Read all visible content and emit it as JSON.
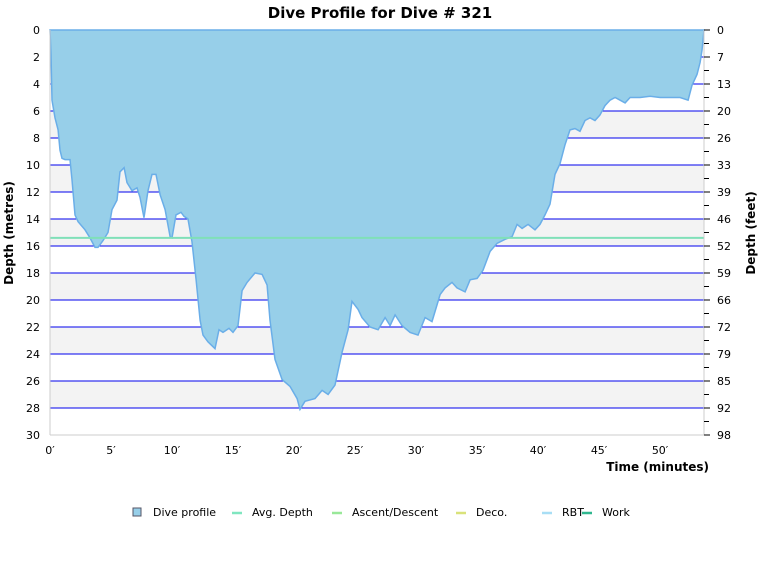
{
  "chart_data": {
    "type": "area",
    "title": "Dive Profile for Dive # 321",
    "xlabel": "Time (minutes)",
    "ylabel": "Depth (metres)",
    "ylabel_right": "Depth (feet)",
    "xlim": [
      0,
      53.6
    ],
    "ylim": [
      0,
      30
    ],
    "y_inverted": true,
    "grid": true,
    "x_ticks": [
      "0′",
      "5′",
      "10′",
      "15′",
      "20′",
      "25′",
      "30′",
      "35′",
      "40′",
      "45′",
      "50′"
    ],
    "y_ticks": [
      "0",
      "2",
      "4",
      "6",
      "8",
      "10",
      "12",
      "14",
      "16",
      "18",
      "20",
      "22",
      "24",
      "26",
      "28",
      "30"
    ],
    "y_right_ticks": [
      "0",
      "7",
      "13",
      "20",
      "26",
      "33",
      "39",
      "46",
      "52",
      "59",
      "66",
      "72",
      "79",
      "85",
      "92",
      "98"
    ],
    "avg_depth": 15.4,
    "colors": {
      "profile_fill": "#97cfe9",
      "profile_line": "#6aaee8",
      "avg_depth": "#7fe0b8",
      "grid": "#0000ee",
      "band": "#f3f3f3"
    },
    "legend_placement": "bottom",
    "legend": [
      {
        "label": "Dive profile",
        "color": "#97cfe9",
        "kind": "box"
      },
      {
        "label": "Avg. Depth",
        "color": "#80e6c0",
        "kind": "line"
      },
      {
        "label": "Ascent/Descent",
        "color": "#99e899",
        "kind": "line"
      },
      {
        "label": "Deco.",
        "color": "#d9e27a",
        "kind": "line"
      },
      {
        "label": "RBT",
        "color": "#a8def5",
        "kind": "line"
      },
      {
        "label": "Work",
        "color": "#2fb78f",
        "kind": "line"
      }
    ],
    "series": [
      {
        "name": "Dive profile",
        "points": [
          [
            0,
            0
          ],
          [
            0.08,
            1.8
          ],
          [
            0.16,
            5.2
          ],
          [
            0.41,
            6.5
          ],
          [
            0.66,
            7.4
          ],
          [
            0.82,
            8.9
          ],
          [
            0.98,
            9.5
          ],
          [
            1.23,
            9.6
          ],
          [
            1.64,
            9.6
          ],
          [
            1.8,
            11.1
          ],
          [
            2.05,
            13.7
          ],
          [
            2.3,
            14.2
          ],
          [
            2.87,
            14.8
          ],
          [
            3.28,
            15.4
          ],
          [
            3.69,
            16.1
          ],
          [
            3.93,
            16.1
          ],
          [
            4.34,
            15.6
          ],
          [
            4.75,
            15
          ],
          [
            5.08,
            13.3
          ],
          [
            5.49,
            12.6
          ],
          [
            5.74,
            10.5
          ],
          [
            6.07,
            10.2
          ],
          [
            6.31,
            11.3
          ],
          [
            6.72,
            11.9
          ],
          [
            7.13,
            11.7
          ],
          [
            7.38,
            12.4
          ],
          [
            7.7,
            13.9
          ],
          [
            8.03,
            11.9
          ],
          [
            8.36,
            10.7
          ],
          [
            8.69,
            10.7
          ],
          [
            9.02,
            12.2
          ],
          [
            9.43,
            13.3
          ],
          [
            9.84,
            15.3
          ],
          [
            10,
            15.4
          ],
          [
            10.33,
            13.7
          ],
          [
            10.74,
            13.5
          ],
          [
            10.98,
            13.8
          ],
          [
            11.31,
            14
          ],
          [
            11.64,
            15.7
          ],
          [
            11.97,
            18.5
          ],
          [
            12.3,
            21.5
          ],
          [
            12.54,
            22.6
          ],
          [
            12.95,
            23.1
          ],
          [
            13.52,
            23.6
          ],
          [
            13.85,
            22.2
          ],
          [
            14.18,
            22.4
          ],
          [
            14.67,
            22.1
          ],
          [
            15,
            22.4
          ],
          [
            15.41,
            21.9
          ],
          [
            15.74,
            19.3
          ],
          [
            16.15,
            18.7
          ],
          [
            16.8,
            18
          ],
          [
            17.38,
            18.1
          ],
          [
            17.79,
            18.9
          ],
          [
            18.03,
            21.5
          ],
          [
            18.44,
            24.4
          ],
          [
            19.02,
            25.9
          ],
          [
            19.67,
            26.4
          ],
          [
            20.25,
            27.3
          ],
          [
            20.49,
            28.1
          ],
          [
            20.9,
            27.5
          ],
          [
            21.72,
            27.3
          ],
          [
            22.3,
            26.7
          ],
          [
            22.79,
            27
          ],
          [
            23.36,
            26.3
          ],
          [
            23.93,
            23.9
          ],
          [
            24.43,
            22.2
          ],
          [
            24.75,
            20.1
          ],
          [
            25.25,
            20.7
          ],
          [
            25.57,
            21.3
          ],
          [
            26.23,
            22
          ],
          [
            26.89,
            22.2
          ],
          [
            27.46,
            21.3
          ],
          [
            27.87,
            21.9
          ],
          [
            28.28,
            21.1
          ],
          [
            28.85,
            21.9
          ],
          [
            29.51,
            22.4
          ],
          [
            30.16,
            22.6
          ],
          [
            30.74,
            21.3
          ],
          [
            31.31,
            21.6
          ],
          [
            31.97,
            19.6
          ],
          [
            32.38,
            19.1
          ],
          [
            32.95,
            18.7
          ],
          [
            33.36,
            19.1
          ],
          [
            34.02,
            19.4
          ],
          [
            34.43,
            18.5
          ],
          [
            35,
            18.4
          ],
          [
            35.49,
            17.8
          ],
          [
            36.07,
            16.4
          ],
          [
            36.64,
            15.8
          ],
          [
            37.3,
            15.5
          ],
          [
            37.87,
            15.3
          ],
          [
            38.28,
            14.4
          ],
          [
            38.69,
            14.7
          ],
          [
            39.18,
            14.4
          ],
          [
            39.75,
            14.8
          ],
          [
            40.16,
            14.4
          ],
          [
            40.57,
            13.7
          ],
          [
            40.98,
            12.9
          ],
          [
            41.39,
            10.7
          ],
          [
            41.8,
            9.9
          ],
          [
            42.21,
            8.5
          ],
          [
            42.62,
            7.4
          ],
          [
            43.03,
            7.3
          ],
          [
            43.44,
            7.5
          ],
          [
            43.85,
            6.7
          ],
          [
            44.26,
            6.5
          ],
          [
            44.67,
            6.7
          ],
          [
            45.08,
            6.3
          ],
          [
            45.49,
            5.6
          ],
          [
            45.9,
            5.2
          ],
          [
            46.31,
            5
          ],
          [
            46.72,
            5.2
          ],
          [
            47.13,
            5.4
          ],
          [
            47.54,
            5
          ],
          [
            48.36,
            5
          ],
          [
            49.18,
            4.9
          ],
          [
            50,
            5
          ],
          [
            50.82,
            5
          ],
          [
            51.64,
            5
          ],
          [
            52.3,
            5.2
          ],
          [
            52.62,
            4.1
          ],
          [
            53.03,
            3.3
          ],
          [
            53.28,
            2.4
          ],
          [
            53.44,
            1.5
          ],
          [
            53.6,
            0
          ]
        ]
      }
    ]
  }
}
